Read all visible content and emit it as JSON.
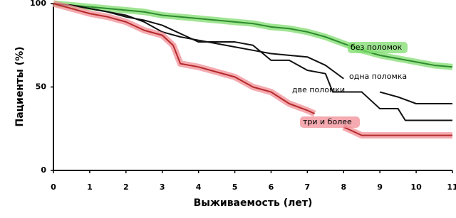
{
  "chart_data": {
    "type": "line",
    "xlabel": "Выживаемость (лет)",
    "ylabel": "Пациенты (%)",
    "xlim": [
      0,
      11
    ],
    "ylim": [
      0,
      100
    ],
    "xticks": [
      0,
      1,
      2,
      3,
      4,
      5,
      6,
      7,
      8,
      9,
      10,
      11
    ],
    "yticks": [
      0,
      50,
      100
    ],
    "series": [
      {
        "name": "без поломок",
        "color": "#2e8b2e",
        "highlight": "#7fdc6e",
        "x": [
          0,
          0.5,
          1,
          1.5,
          2,
          2.5,
          3,
          3.5,
          4,
          4.5,
          5,
          5.5,
          6,
          6.5,
          7,
          7.5,
          8,
          8.5,
          9,
          9.5,
          10,
          10.5,
          11
        ],
        "values": [
          100,
          99,
          98,
          97,
          96,
          95,
          93,
          92,
          91,
          90,
          89,
          88,
          86,
          85,
          83,
          80,
          76,
          72,
          69,
          67,
          65,
          63,
          62
        ]
      },
      {
        "name": "одна поломка",
        "color": "#111111",
        "x": [
          0,
          0.5,
          1,
          1.5,
          2,
          2.5,
          3,
          3.5,
          4,
          4.5,
          5,
          5.5,
          6,
          6.5,
          7,
          7.5,
          8,
          8.5,
          9,
          9.5,
          10,
          10.5,
          11
        ],
        "values": [
          100,
          99,
          97,
          95,
          93,
          89,
          83,
          80,
          78,
          76,
          74,
          72,
          70,
          69,
          68,
          63,
          55,
          null,
          47,
          44,
          40,
          40,
          40
        ]
      },
      {
        "name": "две поломки",
        "color": "#111111",
        "x": [
          0,
          0.5,
          1,
          1.5,
          2,
          2.5,
          3,
          3.5,
          4,
          4.5,
          5,
          5.5,
          6,
          6.5,
          7,
          7.5,
          7.7,
          8.5,
          9,
          9.5,
          9.7,
          10.5,
          11
        ],
        "values": [
          100,
          99,
          97,
          95,
          92,
          90,
          87,
          82,
          77,
          77,
          77,
          75,
          66,
          66,
          60,
          58,
          47,
          47,
          37,
          37,
          30,
          30,
          30
        ]
      },
      {
        "name": "три и более",
        "color": "#b52a2a",
        "highlight": "#f08e96",
        "x": [
          0,
          0.5,
          1,
          1.5,
          2,
          2.5,
          3,
          3.3,
          3.5,
          4,
          4.5,
          5,
          5.5,
          6,
          6.5,
          7,
          7.2,
          7.5,
          8,
          8.5,
          9,
          10,
          11
        ],
        "values": [
          100,
          97,
          94,
          92,
          89,
          84,
          81,
          75,
          64,
          62,
          59,
          56,
          50,
          47,
          40,
          36,
          34,
          null,
          26,
          21,
          21,
          21,
          21
        ]
      }
    ]
  }
}
